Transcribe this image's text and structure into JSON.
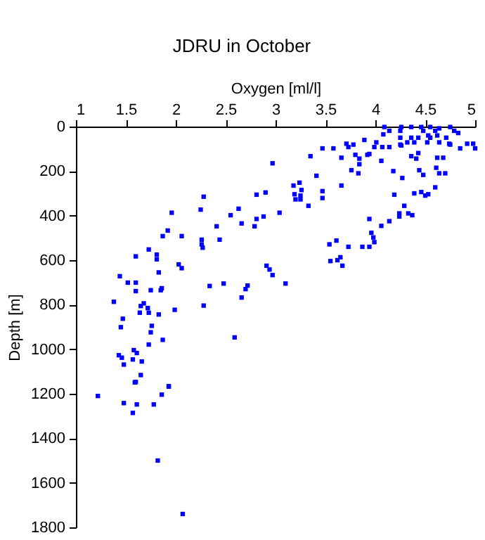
{
  "chart_data": {
    "type": "scatter",
    "title": "JDRU in October",
    "xlabel": "Oxygen [ml/l]",
    "ylabel": "Depth [m]",
    "xlim": [
      1,
      5
    ],
    "xticks": [
      1,
      1.5,
      2,
      2.5,
      3,
      3.5,
      4,
      4.5,
      5
    ],
    "ylim": [
      1800,
      0
    ],
    "yticks": [
      0,
      200,
      400,
      600,
      800,
      1000,
      1200,
      1400,
      1600,
      1800
    ],
    "marker": "square",
    "series": [
      {
        "color": "#0000ff",
        "x": [
          4.14,
          4.26,
          4.36,
          4.46,
          4.55,
          4.64,
          4.75,
          4.79,
          4.83,
          4.48,
          4.6,
          4.53,
          4.62,
          4.36,
          4.43,
          4.55,
          4.71,
          4.25,
          4.32,
          4.39,
          4.52,
          4.64,
          4.74,
          4.92,
          4.98,
          5.0,
          4.85,
          4.75,
          4.25,
          4.25,
          4.01,
          3.99,
          4.07,
          4.14,
          4.26,
          3.89,
          3.78,
          3.71,
          3.73,
          3.58,
          3.66,
          3.8,
          3.84,
          3.84,
          3.83,
          3.76,
          3.92,
          3.94,
          4.06,
          4.08,
          4.09,
          4.18,
          4.27,
          4.36,
          4.41,
          4.43,
          4.44,
          4.48,
          4.62,
          4.68,
          4.61,
          4.64,
          4.7,
          4.6,
          4.53,
          4.5,
          4.46,
          4.39,
          4.19,
          4.29,
          4.33,
          4.37,
          4.24,
          4.24,
          4.14,
          4.06,
          3.94,
          3.96,
          3.98,
          3.99,
          3.94,
          3.87,
          3.73,
          3.61,
          3.54,
          3.47,
          3.35,
          3.41,
          3.47,
          3.47,
          3.66,
          3.19,
          3.25,
          3.2,
          3.25,
          3.26,
          3.24,
          3.18,
          3.33,
          3.04,
          2.97,
          2.81,
          2.9,
          2.81,
          2.79,
          2.88,
          2.63,
          2.55,
          2.66,
          2.41,
          2.44,
          2.28,
          2.25,
          2.26,
          2.26,
          2.27,
          1.96,
          2.06,
          1.92,
          1.87,
          1.73,
          1.6,
          1.81,
          1.81,
          2.03,
          2.06,
          1.83,
          1.44,
          1.52,
          1.6,
          1.6,
          1.75,
          1.86,
          1.85,
          2.34,
          2.48,
          2.91,
          2.94,
          2.97,
          2.72,
          2.7,
          2.66,
          3.1,
          1.38,
          1.68,
          1.65,
          1.72,
          1.64,
          1.73,
          1.83,
          1.99,
          2.28,
          1.47,
          1.45,
          1.76,
          1.75,
          1.73,
          1.87,
          2.59,
          1.43,
          1.46,
          1.58,
          1.61,
          1.57,
          1.66,
          1.48,
          1.65,
          1.59,
          1.93,
          3.55,
          3.62,
          3.65,
          3.67,
          1.22,
          1.48,
          1.61,
          1.57,
          1.78,
          1.86,
          1.93,
          1.6,
          1.82,
          2.07
        ],
        "values": [
          19,
          2,
          2,
          2,
          2,
          8,
          2,
          19,
          29,
          19,
          19,
          40,
          40,
          50,
          50,
          50,
          50,
          50,
          71,
          71,
          71,
          71,
          77,
          77,
          77,
          98,
          98,
          81,
          81,
          19,
          71,
          92,
          92,
          92,
          85,
          60,
          81,
          77,
          92,
          98,
          140,
          127,
          144,
          169,
          210,
          196,
          127,
          123,
          154,
          35,
          2,
          200,
          231,
          133,
          144,
          119,
          196,
          217,
          140,
          140,
          185,
          210,
          210,
          273,
          304,
          310,
          294,
          300,
          306,
          356,
          390,
          398,
          390,
          404,
          425,
          446,
          415,
          477,
          498,
          519,
          540,
          540,
          540,
          512,
          529,
          98,
          133,
          221,
          290,
          321,
          265,
          304,
          310,
          327,
          327,
          285,
          252,
          265,
          356,
          387,
          165,
          306,
          296,
          415,
          448,
          404,
          369,
          398,
          435,
          448,
          508,
          315,
          373,
          508,
          529,
          544,
          387,
          492,
          467,
          492,
          552,
          583,
          575,
          596,
          619,
          636,
          655,
          672,
          701,
          701,
          739,
          735,
          726,
          735,
          716,
          705,
          625,
          642,
          667,
          714,
          730,
          768,
          705,
          787,
          794,
          806,
          815,
          836,
          836,
          844,
          823,
          804,
          863,
          901,
          895,
          924,
          979,
          958,
          947,
          1027,
          1038,
          1004,
          1017,
          1046,
          1055,
          1069,
          1116,
          1149,
          1168,
          604,
          600,
          587,
          625,
          1210,
          1242,
          1248,
          1286,
          1248,
          1204,
          1166,
          1147,
          1500,
          1740
        ]
      }
    ]
  }
}
